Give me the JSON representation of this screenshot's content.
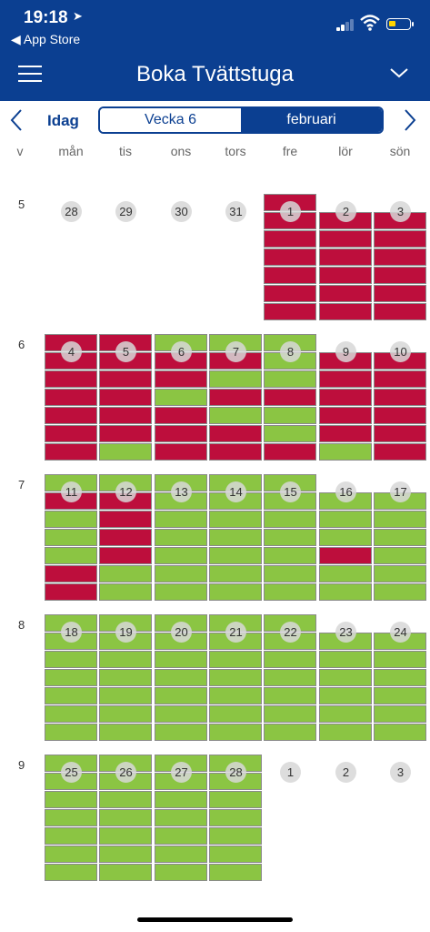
{
  "status_bar": {
    "time": "19:18",
    "back_app": "◀ App Store"
  },
  "header": {
    "title": "Boka Tvättstuga"
  },
  "toolbar": {
    "today_label": "Idag",
    "week_label": "Vecka 6",
    "month_label": "februari"
  },
  "colors": {
    "header_bg": "#0b3f91",
    "free": "#8bc543",
    "booked": "#bd0e3c"
  },
  "icons": {
    "menu": "hamburger-menu-icon",
    "dropdown": "chevron-down-icon",
    "prev": "chevron-left-icon",
    "next": "chevron-right-icon"
  },
  "day_headers": {
    "week_col": "v",
    "days": [
      "mån",
      "tis",
      "ons",
      "tors",
      "fre",
      "lör",
      "sön"
    ]
  },
  "weeks": [
    {
      "week": "5",
      "days": [
        {
          "date": "28",
          "slots": null
        },
        {
          "date": "29",
          "slots": null
        },
        {
          "date": "30",
          "slots": null
        },
        {
          "date": "31",
          "slots": null
        },
        {
          "date": "1",
          "slots": [
            "R",
            "R",
            "R",
            "R",
            "R",
            "R",
            "R"
          ]
        },
        {
          "date": "2",
          "slots": [
            "R",
            "R",
            "R",
            "R",
            "R",
            "R"
          ]
        },
        {
          "date": "3",
          "slots": [
            "R",
            "R",
            "R",
            "R",
            "R",
            "R"
          ]
        }
      ]
    },
    {
      "week": "6",
      "days": [
        {
          "date": "4",
          "slots": [
            "R",
            "R",
            "R",
            "R",
            "R",
            "R",
            "R"
          ]
        },
        {
          "date": "5",
          "slots": [
            "R",
            "R",
            "R",
            "R",
            "R",
            "R",
            "G"
          ]
        },
        {
          "date": "6",
          "slots": [
            "G",
            "R",
            "R",
            "G",
            "R",
            "R",
            "R"
          ]
        },
        {
          "date": "7",
          "slots": [
            "G",
            "R",
            "G",
            "R",
            "G",
            "R",
            "R"
          ]
        },
        {
          "date": "8",
          "slots": [
            "G",
            "G",
            "G",
            "R",
            "G",
            "G",
            "R"
          ]
        },
        {
          "date": "9",
          "slots": [
            "R",
            "R",
            "R",
            "R",
            "R",
            "G"
          ]
        },
        {
          "date": "10",
          "slots": [
            "R",
            "R",
            "R",
            "R",
            "R",
            "R"
          ]
        }
      ]
    },
    {
      "week": "7",
      "days": [
        {
          "date": "11",
          "slots": [
            "G",
            "R",
            "G",
            "G",
            "G",
            "R",
            "R"
          ]
        },
        {
          "date": "12",
          "slots": [
            "G",
            "R",
            "R",
            "R",
            "R",
            "G",
            "G"
          ]
        },
        {
          "date": "13",
          "slots": [
            "G",
            "G",
            "G",
            "G",
            "G",
            "G",
            "G"
          ]
        },
        {
          "date": "14",
          "slots": [
            "G",
            "G",
            "G",
            "G",
            "G",
            "G",
            "G"
          ]
        },
        {
          "date": "15",
          "slots": [
            "G",
            "G",
            "G",
            "G",
            "G",
            "G",
            "G"
          ]
        },
        {
          "date": "16",
          "slots": [
            "G",
            "G",
            "G",
            "R",
            "G",
            "G"
          ]
        },
        {
          "date": "17",
          "slots": [
            "G",
            "G",
            "G",
            "G",
            "G",
            "G"
          ]
        }
      ]
    },
    {
      "week": "8",
      "days": [
        {
          "date": "18",
          "slots": [
            "G",
            "G",
            "G",
            "G",
            "G",
            "G",
            "G"
          ]
        },
        {
          "date": "19",
          "slots": [
            "G",
            "G",
            "G",
            "G",
            "G",
            "G",
            "G"
          ]
        },
        {
          "date": "20",
          "slots": [
            "G",
            "G",
            "G",
            "G",
            "G",
            "G",
            "G"
          ]
        },
        {
          "date": "21",
          "slots": [
            "G",
            "G",
            "G",
            "G",
            "G",
            "G",
            "G"
          ]
        },
        {
          "date": "22",
          "slots": [
            "G",
            "G",
            "G",
            "G",
            "G",
            "G",
            "G"
          ]
        },
        {
          "date": "23",
          "slots": [
            "G",
            "G",
            "G",
            "G",
            "G",
            "G"
          ]
        },
        {
          "date": "24",
          "slots": [
            "G",
            "G",
            "G",
            "G",
            "G",
            "G"
          ]
        }
      ]
    },
    {
      "week": "9",
      "days": [
        {
          "date": "25",
          "slots": [
            "G",
            "G",
            "G",
            "G",
            "G",
            "G",
            "G"
          ]
        },
        {
          "date": "26",
          "slots": [
            "G",
            "G",
            "G",
            "G",
            "G",
            "G",
            "G"
          ]
        },
        {
          "date": "27",
          "slots": [
            "G",
            "G",
            "G",
            "G",
            "G",
            "G",
            "G"
          ]
        },
        {
          "date": "28",
          "slots": [
            "G",
            "G",
            "G",
            "G",
            "G",
            "G",
            "G"
          ]
        },
        {
          "date": "1",
          "slots": null
        },
        {
          "date": "2",
          "slots": null
        },
        {
          "date": "3",
          "slots": null
        }
      ]
    }
  ]
}
